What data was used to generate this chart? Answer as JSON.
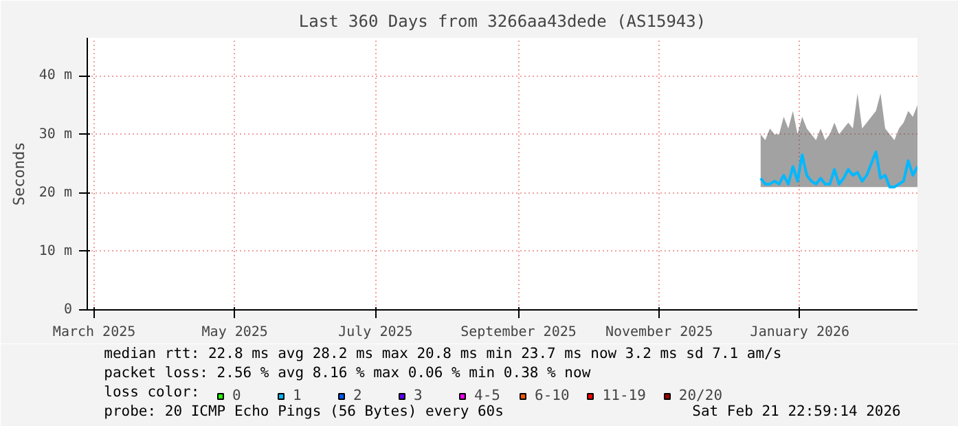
{
  "chart_data": {
    "type": "line",
    "title": "Last 360 Days from 3266aa43dede (AS15943)",
    "ylabel": "Seconds",
    "x": [
      "2025-12-15",
      "2025-12-17",
      "2025-12-19",
      "2025-12-21",
      "2025-12-23",
      "2025-12-25",
      "2025-12-27",
      "2025-12-29",
      "2025-12-31",
      "2026-01-02",
      "2026-01-04",
      "2026-01-06",
      "2026-01-08",
      "2026-01-10",
      "2026-01-12",
      "2026-01-14",
      "2026-01-16",
      "2026-01-18",
      "2026-01-20",
      "2026-01-22",
      "2026-01-24",
      "2026-01-26",
      "2026-01-28",
      "2026-01-30",
      "2026-02-01",
      "2026-02-03",
      "2026-02-05",
      "2026-02-07",
      "2026-02-09",
      "2026-02-11",
      "2026-02-13",
      "2026-02-15",
      "2026-02-17",
      "2026-02-19",
      "2026-02-21"
    ],
    "series": [
      {
        "color": "#00b8ff",
        "values": [
          22.5,
          21.5,
          21.5,
          22,
          21.5,
          23,
          21.5,
          24.5,
          22,
          26.5,
          23,
          22,
          21.5,
          22.5,
          21.5,
          21.5,
          24,
          21.5,
          22.5,
          24,
          23,
          23.5,
          22,
          23,
          25,
          27,
          22.5,
          23,
          21,
          21,
          21.5,
          22,
          25.5,
          23,
          24.5
        ],
        "lower": [
          21,
          21,
          21,
          21,
          21,
          21,
          21,
          21,
          21,
          21,
          21,
          21,
          21,
          21,
          21,
          21,
          21,
          21,
          21,
          21,
          21,
          21,
          21,
          21,
          21,
          21,
          21,
          21,
          21,
          21,
          21,
          21,
          21,
          21,
          21
        ],
        "upper": [
          30,
          29,
          31,
          30,
          30,
          33,
          31,
          34,
          30,
          33,
          31,
          30,
          29,
          31,
          29,
          30,
          32,
          30,
          31,
          32,
          31,
          37,
          31,
          32,
          33,
          34,
          37,
          31,
          30,
          29,
          31,
          32,
          34,
          33,
          35
        ]
      },
      {
        "name": "0",
        "color": "#26ff00",
        "values": [
          null,
          null,
          null,
          null,
          null,
          null,
          null,
          null,
          null,
          null,
          null,
          null,
          null,
          null,
          null,
          null,
          null,
          null,
          null,
          null,
          null,
          null,
          null,
          null,
          null,
          null,
          null,
          null,
          null,
          null,
          null,
          null,
          null,
          null,
          null
        ]
      },
      {
        "name": "1",
        "color": "#00b8ff",
        "values": [
          null,
          null,
          null,
          null,
          null,
          null,
          null,
          null,
          null,
          null,
          null,
          null,
          null,
          null,
          null,
          null,
          null,
          null,
          null,
          null,
          null,
          null,
          null,
          null,
          null,
          null,
          null,
          null,
          null,
          null,
          null,
          null,
          null,
          null,
          null
        ]
      },
      {
        "name": "2",
        "color": "#0059ff",
        "values": [
          null,
          null,
          null,
          null,
          null,
          null,
          null,
          null,
          null,
          null,
          null,
          null,
          null,
          null,
          null,
          null,
          null,
          null,
          null,
          null,
          null,
          null,
          null,
          null,
          null,
          null,
          null,
          null,
          null,
          null,
          null,
          null,
          null,
          null,
          null
        ]
      },
      {
        "name": "3",
        "color": "#5e00ff",
        "values": [
          null,
          null,
          null,
          null,
          null,
          null,
          null,
          null,
          null,
          null,
          null,
          null,
          null,
          null,
          null,
          null,
          null,
          null,
          null,
          null,
          null,
          null,
          null,
          null,
          null,
          null,
          null,
          null,
          null,
          null,
          null,
          null,
          null,
          null,
          null
        ]
      },
      {
        "name": "4-5",
        "color": "#ff00ff",
        "values": [
          null,
          null,
          null,
          null,
          null,
          null,
          null,
          null,
          null,
          null,
          null,
          null,
          null,
          null,
          null,
          null,
          null,
          null,
          null,
          null,
          null,
          null,
          null,
          null,
          null,
          null,
          null,
          null,
          null,
          null,
          null,
          null,
          null,
          null,
          null
        ]
      },
      {
        "name": "6-10",
        "color": "#ff5500",
        "values": [
          null,
          null,
          null,
          null,
          null,
          null,
          null,
          null,
          null,
          null,
          null,
          null,
          null,
          null,
          null,
          null,
          null,
          null,
          null,
          null,
          null,
          null,
          null,
          null,
          null,
          null,
          null,
          null,
          null,
          null,
          null,
          null,
          null,
          null,
          null
        ]
      },
      {
        "name": "11-19",
        "color": "#ff0000",
        "values": [
          null,
          null,
          null,
          null,
          null,
          null,
          null,
          null,
          null,
          null,
          null,
          null,
          null,
          null,
          null,
          null,
          null,
          null,
          null,
          null,
          null,
          null,
          null,
          null,
          null,
          null,
          null,
          null,
          null,
          null,
          null,
          null,
          null,
          null,
          null
        ]
      },
      {
        "name": "20/20",
        "color": "#a10000",
        "values": [
          null,
          null,
          null,
          null,
          null,
          null,
          null,
          null,
          null,
          null,
          null,
          null,
          null,
          null,
          null,
          null,
          null,
          null,
          null,
          null,
          null,
          null,
          null,
          null,
          null,
          null,
          null,
          null,
          null,
          null,
          null,
          null,
          null,
          null,
          null
        ]
      }
    ],
    "legend_title": "loss color:",
    "legend": "bottom",
    "xlim": [
      "2025-02-26",
      "2026-02-21"
    ],
    "xticks": [
      {
        "value": "2025-03-01",
        "label": "March 2025"
      },
      {
        "value": "2025-05-01",
        "label": "May 2025"
      },
      {
        "value": "2025-07-01",
        "label": "July 2025"
      },
      {
        "value": "2025-09-01",
        "label": "September 2025"
      },
      {
        "value": "2025-11-01",
        "label": "November 2025"
      },
      {
        "value": "2026-01-01",
        "label": "January 2026"
      }
    ],
    "ylim": [
      0,
      46.5
    ],
    "yticks": [
      0,
      {
        "value": 10,
        "label": "10 m"
      },
      {
        "value": 20,
        "label": "20 m"
      },
      {
        "value": 30,
        "label": "30 m"
      },
      {
        "value": 40,
        "label": "40 m"
      }
    ],
    "grid": true,
    "annotations": [
      "median rtt:  22.8 ms avg  28.2 ms max  20.8 ms min  23.7 ms now  3.2 ms sd  7.1   am/s",
      "packet loss: 2.56 % avg  8.16 % max  0.06 % min  0.38 % now",
      "probe:       20 ICMP Echo Pings (56 Bytes) every 60s",
      "Sat Feb 21 22:59:14 2026"
    ]
  }
}
